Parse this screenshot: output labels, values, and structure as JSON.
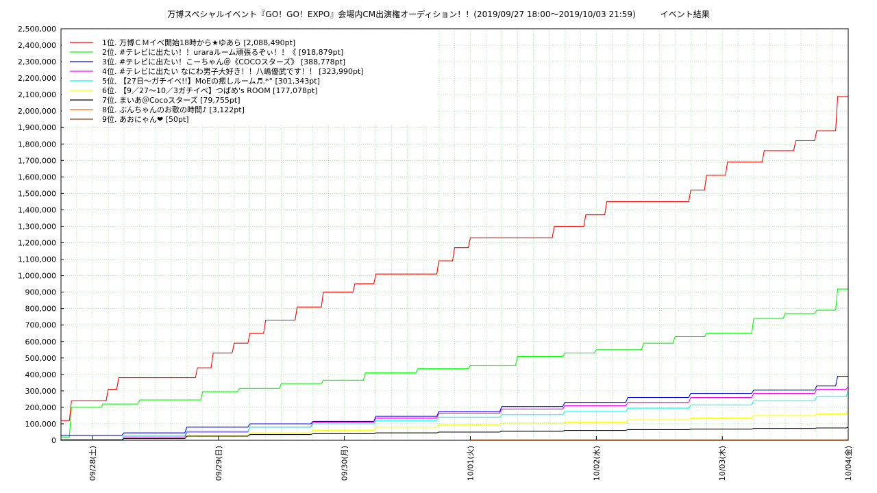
{
  "chart_data": {
    "type": "line",
    "title": "万博スペシャルイベント『GO！GO！EXPO』会場内CM出演権オーディション！！(2019/09/27 18:00〜2019/10/03 21:59)　　　イベント結果",
    "xlabel": "",
    "ylabel": "",
    "ylim": [
      0,
      2500000
    ],
    "xlim": [
      "2019-09-27 18:00",
      "2019-10-04 00:00"
    ],
    "grid": true,
    "legend_position": "top-left",
    "y_ticks": [
      "0",
      "100,000",
      "200,000",
      "300,000",
      "400,000",
      "500,000",
      "600,000",
      "700,000",
      "800,000",
      "900,000",
      "1,000,000",
      "1,100,000",
      "1,200,000",
      "1,300,000",
      "1,400,000",
      "1,500,000",
      "1,600,000",
      "1,700,000",
      "1,800,000",
      "1,900,000",
      "2,000,000",
      "2,100,000",
      "2,200,000",
      "2,300,000",
      "2,400,000",
      "2,500,000"
    ],
    "x_ticks": [
      {
        "label": "09/28(土)",
        "t": "2019-09-28 00:00"
      },
      {
        "label": "09/29(日)",
        "t": "2019-09-29 00:00"
      },
      {
        "label": "09/30(月)",
        "t": "2019-09-30 00:00"
      },
      {
        "label": "10/01(火)",
        "t": "2019-10-01 00:00"
      },
      {
        "label": "10/02(水)",
        "t": "2019-10-02 00:00"
      },
      {
        "label": "10/03(木)",
        "t": "2019-10-03 00:00"
      },
      {
        "label": "10/04(金)",
        "t": "2019-10-04 00:00"
      }
    ],
    "series": [
      {
        "name": "1位. 万博ＣＭイベ開始18時から★ゆあら [2,088,490pt]",
        "color": "#ff0000",
        "x": [
          "2019-09-27 18:00",
          "2019-09-27 20:00",
          "2019-09-28 03:00",
          "2019-09-28 05:00",
          "2019-09-28 20:00",
          "2019-09-28 23:00",
          "2019-09-29 03:00",
          "2019-09-29 06:00",
          "2019-09-29 09:00",
          "2019-09-29 15:00",
          "2019-09-29 20:00",
          "2019-09-30 02:00",
          "2019-09-30 06:00",
          "2019-09-30 10:00",
          "2019-09-30 18:00",
          "2019-09-30 21:00",
          "2019-10-01 00:00",
          "2019-10-01 16:00",
          "2019-10-01 22:00",
          "2019-10-02 02:00",
          "2019-10-02 18:00",
          "2019-10-02 21:00",
          "2019-10-03 01:00",
          "2019-10-03 08:00",
          "2019-10-03 14:00",
          "2019-10-03 18:00",
          "2019-10-03 21:59",
          "2019-10-04 00:00"
        ],
        "y": [
          120000,
          240000,
          310000,
          380000,
          440000,
          530000,
          590000,
          650000,
          730000,
          810000,
          900000,
          950000,
          1010000,
          1010000,
          1090000,
          1170000,
          1230000,
          1300000,
          1370000,
          1450000,
          1520000,
          1610000,
          1690000,
          1760000,
          1820000,
          1880000,
          2088490,
          2088490
        ]
      },
      {
        "name": "2位. #テレビに出たい！！uraraルーム頑張るぞぃ！！《 [918,879pt]",
        "color": "#00ff00",
        "x": [
          "2019-09-27 18:00",
          "2019-09-27 20:00",
          "2019-09-28 02:00",
          "2019-09-28 09:00",
          "2019-09-28 21:00",
          "2019-09-29 04:00",
          "2019-09-29 12:00",
          "2019-09-29 20:00",
          "2019-09-30 04:00",
          "2019-09-30 14:00",
          "2019-10-01 00:00",
          "2019-10-01 09:00",
          "2019-10-01 18:00",
          "2019-10-02 00:00",
          "2019-10-02 09:00",
          "2019-10-02 15:00",
          "2019-10-02 21:00",
          "2019-10-03 06:00",
          "2019-10-03 12:00",
          "2019-10-03 18:00",
          "2019-10-03 21:59",
          "2019-10-04 00:00"
        ],
        "y": [
          20000,
          200000,
          220000,
          245000,
          295000,
          315000,
          345000,
          365000,
          410000,
          435000,
          455000,
          510000,
          530000,
          550000,
          590000,
          630000,
          650000,
          740000,
          770000,
          790000,
          918879,
          918879
        ]
      },
      {
        "name": "3位. #テレビに出たい！こーちゃん＠《COCOスターズ》 [388,778pt]",
        "color": "#0000ff",
        "x": [
          "2019-09-27 18:00",
          "2019-09-28 06:00",
          "2019-09-28 18:00",
          "2019-09-29 06:00",
          "2019-09-29 18:00",
          "2019-09-30 06:00",
          "2019-09-30 18:00",
          "2019-10-01 06:00",
          "2019-10-01 18:00",
          "2019-10-02 06:00",
          "2019-10-02 18:00",
          "2019-10-03 06:00",
          "2019-10-03 18:00",
          "2019-10-03 21:59",
          "2019-10-04 00:00"
        ],
        "y": [
          30000,
          45000,
          80000,
          100000,
          115000,
          145000,
          175000,
          205000,
          230000,
          260000,
          285000,
          305000,
          330000,
          388778,
          388778
        ]
      },
      {
        "name": "4位. #テレビに出たい なにわ男子大好き！！八嶋優武です！！ [323,990pt]",
        "color": "#ff00ff",
        "x": [
          "2019-09-27 18:00",
          "2019-09-28 06:00",
          "2019-09-28 18:00",
          "2019-09-29 06:00",
          "2019-09-29 18:00",
          "2019-09-30 06:00",
          "2019-09-30 18:00",
          "2019-10-01 06:00",
          "2019-10-01 18:00",
          "2019-10-02 06:00",
          "2019-10-02 18:00",
          "2019-10-03 06:00",
          "2019-10-03 18:00",
          "2019-10-04 00:00"
        ],
        "y": [
          5000,
          20000,
          50000,
          80000,
          110000,
          135000,
          165000,
          190000,
          210000,
          230000,
          260000,
          285000,
          310000,
          323990
        ]
      },
      {
        "name": "5位. 【27日〜ガチイベ!!】MoEの癒しルーム♬.*° [301,343pt]",
        "color": "#00ffff",
        "x": [
          "2019-09-27 18:00",
          "2019-09-28 06:00",
          "2019-09-28 18:00",
          "2019-09-29 06:00",
          "2019-09-29 18:00",
          "2019-09-30 06:00",
          "2019-09-30 18:00",
          "2019-10-01 06:00",
          "2019-10-01 18:00",
          "2019-10-02 06:00",
          "2019-10-02 18:00",
          "2019-10-03 06:00",
          "2019-10-03 18:00",
          "2019-10-04 00:00"
        ],
        "y": [
          5000,
          30000,
          55000,
          80000,
          100000,
          120000,
          140000,
          155000,
          175000,
          195000,
          215000,
          240000,
          265000,
          301343
        ]
      },
      {
        "name": "6位. 【9／27〜10／3ガチイベ】つばめ's ROOM [177,078pt]",
        "color": "#ffff00",
        "x": [
          "2019-09-27 18:00",
          "2019-09-28 06:00",
          "2019-09-28 18:00",
          "2019-09-29 06:00",
          "2019-09-29 18:00",
          "2019-09-30 06:00",
          "2019-09-30 18:00",
          "2019-10-01 06:00",
          "2019-10-01 18:00",
          "2019-10-02 06:00",
          "2019-10-02 18:00",
          "2019-10-03 06:00",
          "2019-10-03 18:00",
          "2019-10-04 00:00"
        ],
        "y": [
          3000,
          15000,
          30000,
          45000,
          60000,
          80000,
          95000,
          105000,
          110000,
          125000,
          135000,
          150000,
          160000,
          177078
        ]
      },
      {
        "name": "7位. まいあ＠Cocoスターズ [79,755pt]",
        "color": "#000000",
        "x": [
          "2019-09-27 18:00",
          "2019-09-28 06:00",
          "2019-09-28 18:00",
          "2019-09-29 06:00",
          "2019-09-29 18:00",
          "2019-09-30 06:00",
          "2019-09-30 18:00",
          "2019-10-01 06:00",
          "2019-10-01 18:00",
          "2019-10-02 06:00",
          "2019-10-02 18:00",
          "2019-10-03 06:00",
          "2019-10-03 18:00",
          "2019-10-04 00:00"
        ],
        "y": [
          2000,
          10000,
          25000,
          35000,
          40000,
          45000,
          50000,
          55000,
          60000,
          65000,
          68000,
          72000,
          75000,
          79755
        ]
      },
      {
        "name": "8位. ぶんちゃんのお歌の時間♪ [3,122pt]",
        "color": "#ff6600",
        "x": [
          "2019-09-27 18:00",
          "2019-10-01 00:00",
          "2019-10-04 00:00"
        ],
        "y": [
          0,
          1500,
          3122
        ]
      },
      {
        "name": "9位. あおにゃん❤ [50pt]",
        "color": "#8b4513",
        "x": [
          "2019-09-27 18:00",
          "2019-10-04 00:00"
        ],
        "y": [
          0,
          50
        ]
      }
    ]
  }
}
